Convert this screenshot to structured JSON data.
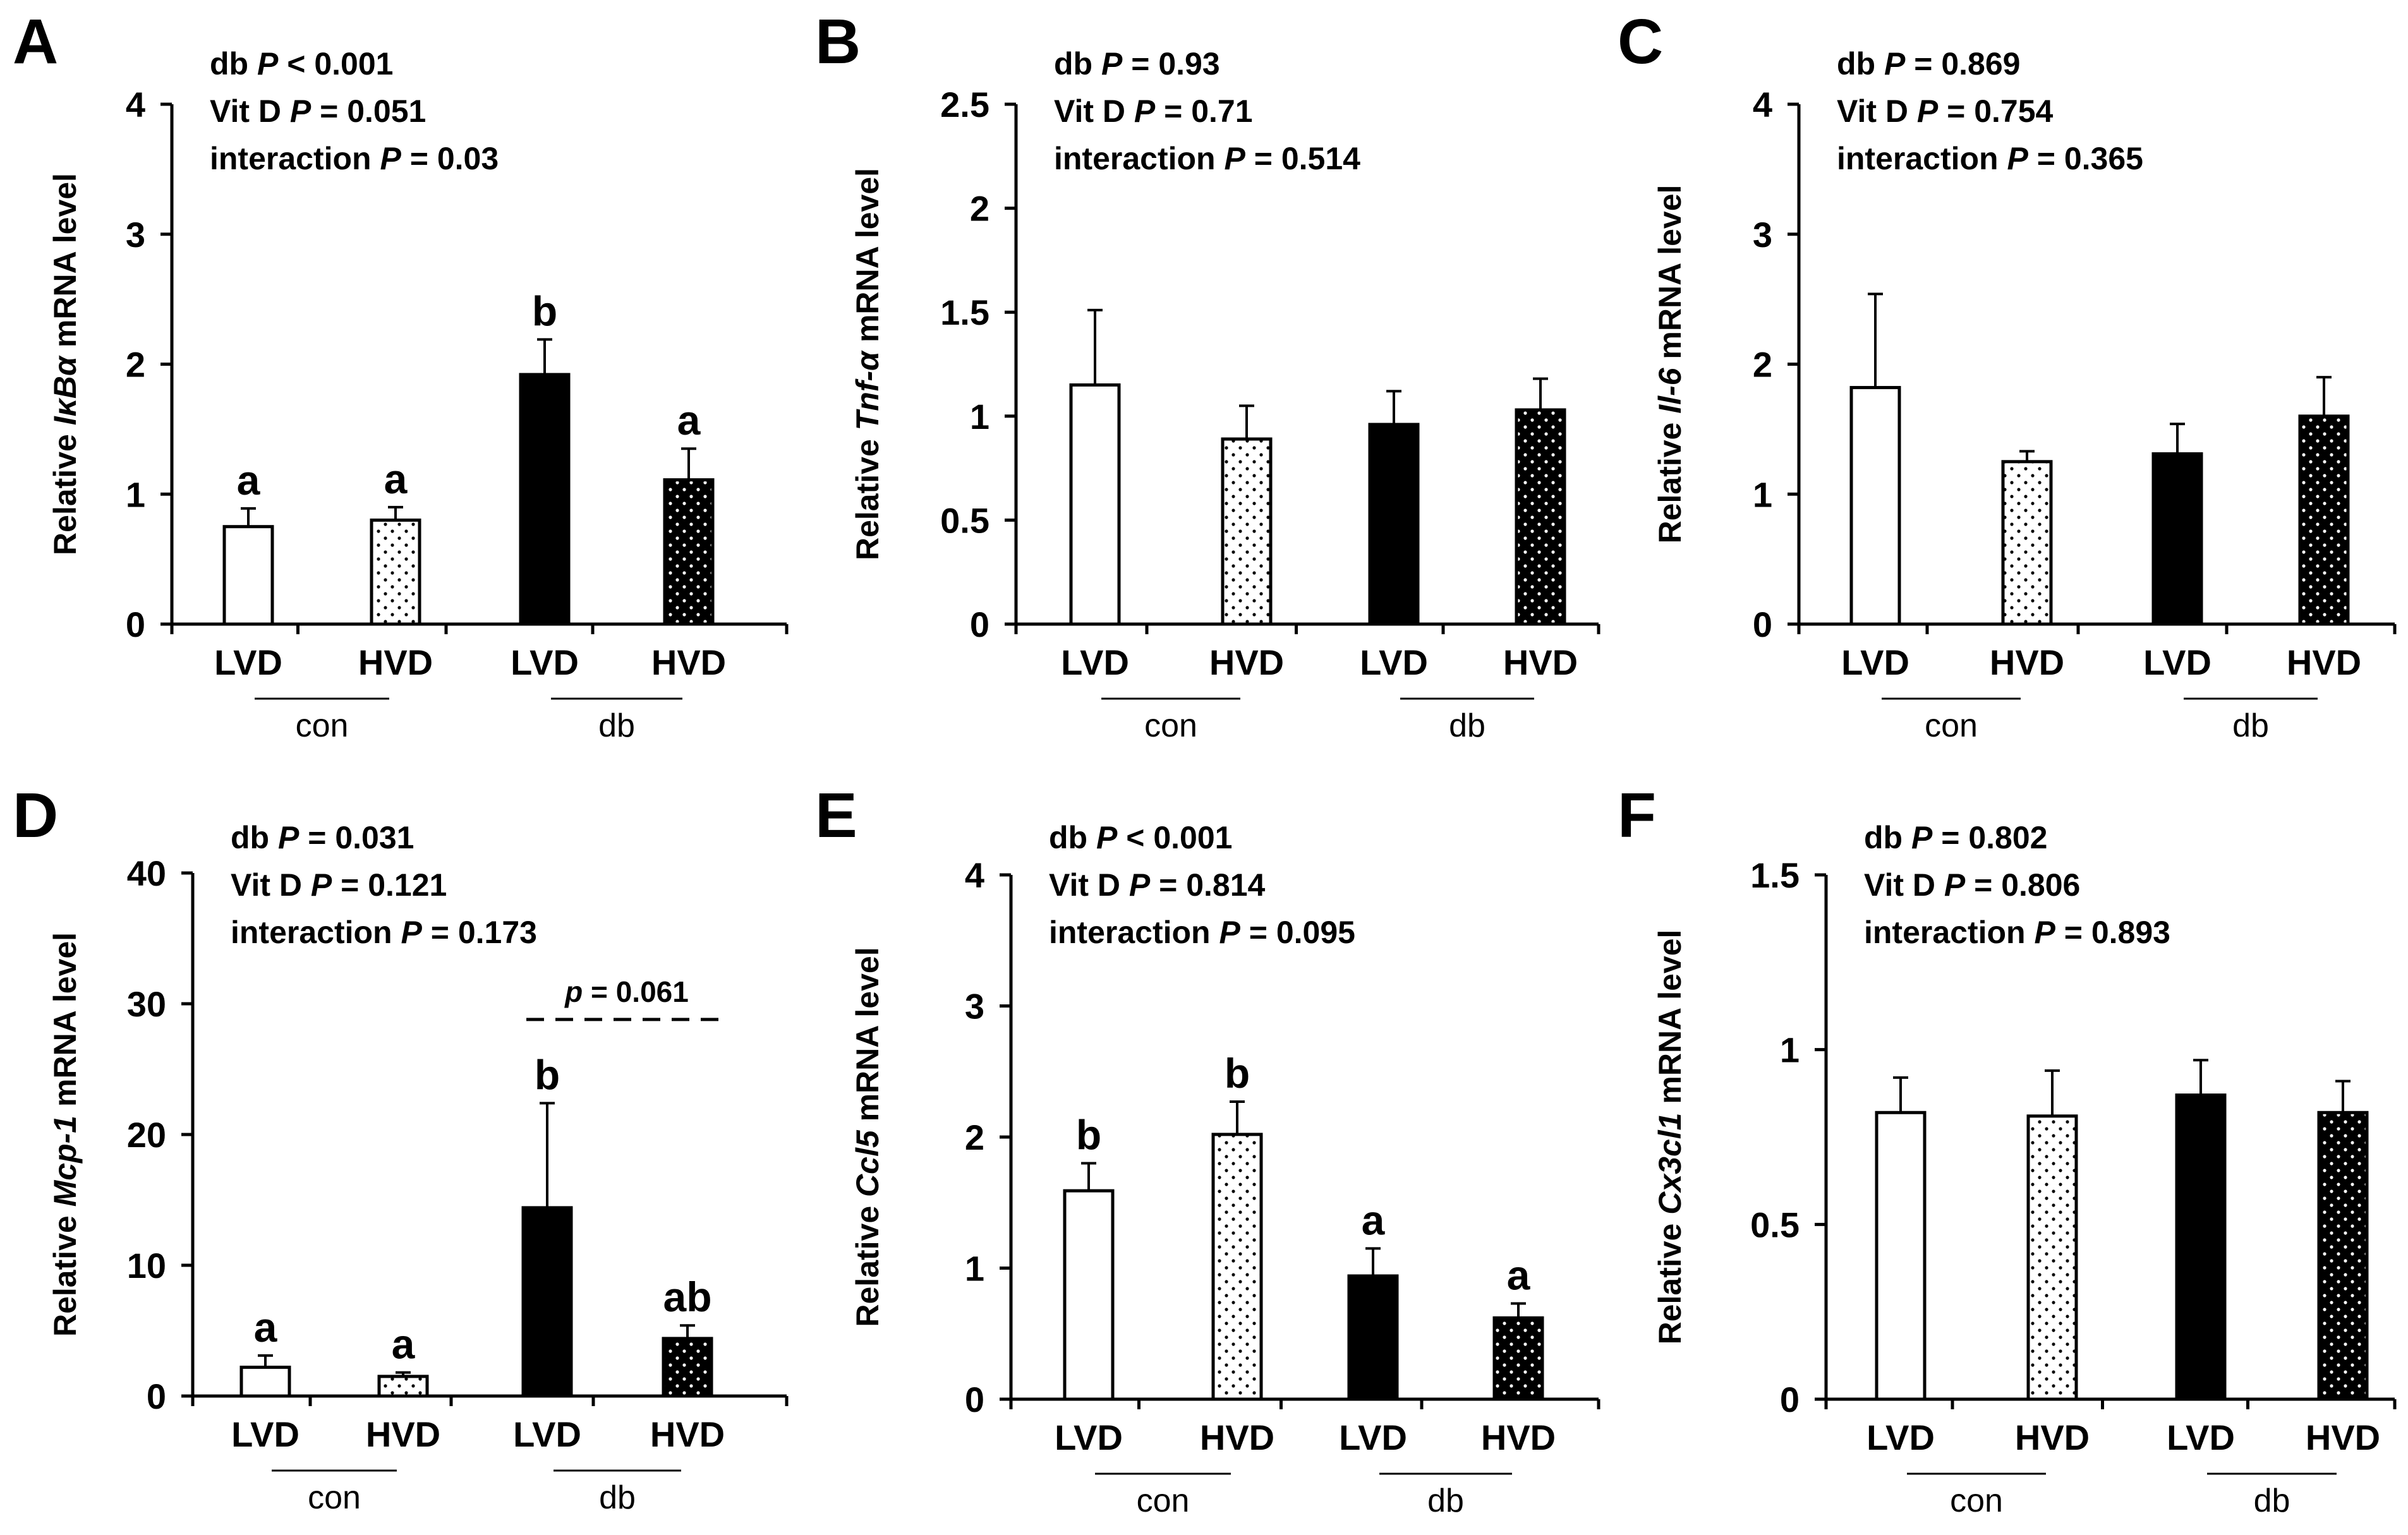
{
  "colors": {
    "axis": "#000000",
    "bar_black": "#000000",
    "bar_white": "#ffffff",
    "dot": "#000000"
  },
  "chart_data": [
    {
      "panel_label": "A",
      "type": "bar",
      "gene": "IκBα",
      "ylabel_prefix": "Relative ",
      "ylabel_suffix": " mRNA level",
      "ylim": [
        0,
        4
      ],
      "yticks": [
        "0",
        "1",
        "2",
        "3",
        "4"
      ],
      "ytick_values": [
        0,
        1,
        2,
        3,
        4
      ],
      "categories": [
        "LVD",
        "HVD",
        "LVD",
        "HVD"
      ],
      "groups": [
        "con",
        "db"
      ],
      "values": [
        0.75,
        0.8,
        1.92,
        1.11
      ],
      "errors": [
        0.14,
        0.1,
        0.27,
        0.24
      ],
      "letters": [
        "a",
        "a",
        "b",
        "a"
      ],
      "stats": [
        {
          "label": "db ",
          "p": "P",
          "value": " < 0.001"
        },
        {
          "label": "Vit D ",
          "p": "P",
          "value": " = 0.051"
        },
        {
          "label": "interaction ",
          "p": "P",
          "value": " = 0.03"
        }
      ]
    },
    {
      "panel_label": "B",
      "type": "bar",
      "gene": "Tnf-α",
      "ylabel_prefix": "Relative ",
      "ylabel_suffix": " mRNA level",
      "ylim": [
        0,
        2.5
      ],
      "yticks": [
        "0",
        "0.5",
        "1",
        "1.5",
        "2",
        "2.5"
      ],
      "ytick_values": [
        0,
        0.5,
        1,
        1.5,
        2,
        2.5
      ],
      "categories": [
        "LVD",
        "HVD",
        "LVD",
        "HVD"
      ],
      "groups": [
        "con",
        "db"
      ],
      "values": [
        1.15,
        0.89,
        0.96,
        1.03
      ],
      "errors": [
        0.36,
        0.16,
        0.16,
        0.15
      ],
      "letters": [
        "",
        "",
        "",
        ""
      ],
      "stats": [
        {
          "label": "db ",
          "p": "P",
          "value": " = 0.93"
        },
        {
          "label": "Vit D ",
          "p": "P",
          "value": " = 0.71"
        },
        {
          "label": "interaction ",
          "p": "P",
          "value": " = 0.514"
        }
      ]
    },
    {
      "panel_label": "C",
      "type": "bar",
      "gene": "Il-6",
      "ylabel_prefix": "Relative ",
      "ylabel_suffix": " mRNA level",
      "ylim": [
        0,
        4
      ],
      "yticks": [
        "0",
        "1",
        "2",
        "3",
        "4"
      ],
      "ytick_values": [
        0,
        1,
        2,
        3,
        4
      ],
      "categories": [
        "LVD",
        "HVD",
        "LVD",
        "HVD"
      ],
      "groups": [
        "con",
        "db"
      ],
      "values": [
        1.82,
        1.25,
        1.31,
        1.6
      ],
      "errors": [
        0.72,
        0.08,
        0.23,
        0.3
      ],
      "letters": [
        "",
        "",
        "",
        ""
      ],
      "stats": [
        {
          "label": "db ",
          "p": "P",
          "value": " = 0.869"
        },
        {
          "label": "Vit D ",
          "p": "P",
          "value": " = 0.754"
        },
        {
          "label": "interaction ",
          "p": "P",
          "value": " = 0.365"
        }
      ]
    },
    {
      "panel_label": "D",
      "type": "bar",
      "gene": "Mcp-1",
      "ylabel_prefix": "Relative ",
      "ylabel_suffix": " mRNA level",
      "ylim": [
        0,
        40
      ],
      "yticks": [
        "0",
        "10",
        "20",
        "30",
        "40"
      ],
      "ytick_values": [
        0,
        10,
        20,
        30,
        40
      ],
      "categories": [
        "LVD",
        "HVD",
        "LVD",
        "HVD"
      ],
      "groups": [
        "con",
        "db"
      ],
      "values": [
        2.2,
        1.5,
        14.4,
        4.4
      ],
      "errors": [
        0.9,
        0.3,
        8.0,
        1.0
      ],
      "letters": [
        "a",
        "a",
        "b",
        "ab"
      ],
      "comparison": {
        "p_italic": "p",
        "text": " = 0.061",
        "y": 28.8,
        "from": 2,
        "to": 3
      },
      "stats": [
        {
          "label": "db ",
          "p": "P",
          "value": " = 0.031"
        },
        {
          "label": "Vit D ",
          "p": "P",
          "value": " = 0.121"
        },
        {
          "label": "interaction ",
          "p": "P",
          "value": " = 0.173"
        }
      ]
    },
    {
      "panel_label": "E",
      "type": "bar",
      "gene": "Ccl5",
      "ylabel_prefix": "Relative ",
      "ylabel_suffix": " mRNA level",
      "ylim": [
        0,
        4
      ],
      "yticks": [
        "0",
        "1",
        "2",
        "3",
        "4"
      ],
      "ytick_values": [
        0,
        1,
        2,
        3,
        4
      ],
      "categories": [
        "LVD",
        "HVD",
        "LVD",
        "HVD"
      ],
      "groups": [
        "con",
        "db"
      ],
      "values": [
        1.59,
        2.02,
        0.94,
        0.62
      ],
      "errors": [
        0.21,
        0.25,
        0.21,
        0.11
      ],
      "letters": [
        "b",
        "b",
        "a",
        "a"
      ],
      "stats": [
        {
          "label": "db ",
          "p": "P",
          "value": " < 0.001"
        },
        {
          "label": "Vit D ",
          "p": "P",
          "value": " = 0.814"
        },
        {
          "label": "interaction ",
          "p": "P",
          "value": " = 0.095"
        }
      ]
    },
    {
      "panel_label": "F",
      "type": "bar",
      "gene": "Cx3cl1",
      "ylabel_prefix": "Relative ",
      "ylabel_suffix": " mRNA level",
      "ylim": [
        0,
        1.5
      ],
      "yticks": [
        "0",
        "0.5",
        "1",
        "1.5"
      ],
      "ytick_values": [
        0,
        0.5,
        1,
        1.5
      ],
      "categories": [
        "LVD",
        "HVD",
        "LVD",
        "HVD"
      ],
      "groups": [
        "con",
        "db"
      ],
      "values": [
        0.82,
        0.81,
        0.87,
        0.82
      ],
      "errors": [
        0.1,
        0.13,
        0.1,
        0.09
      ],
      "letters": [
        "",
        "",
        "",
        ""
      ],
      "stats": [
        {
          "label": "db ",
          "p": "P",
          "value": " = 0.802"
        },
        {
          "label": "Vit D ",
          "p": "P",
          "value": " = 0.806"
        },
        {
          "label": "interaction ",
          "p": "P",
          "value": " = 0.893"
        }
      ]
    }
  ]
}
